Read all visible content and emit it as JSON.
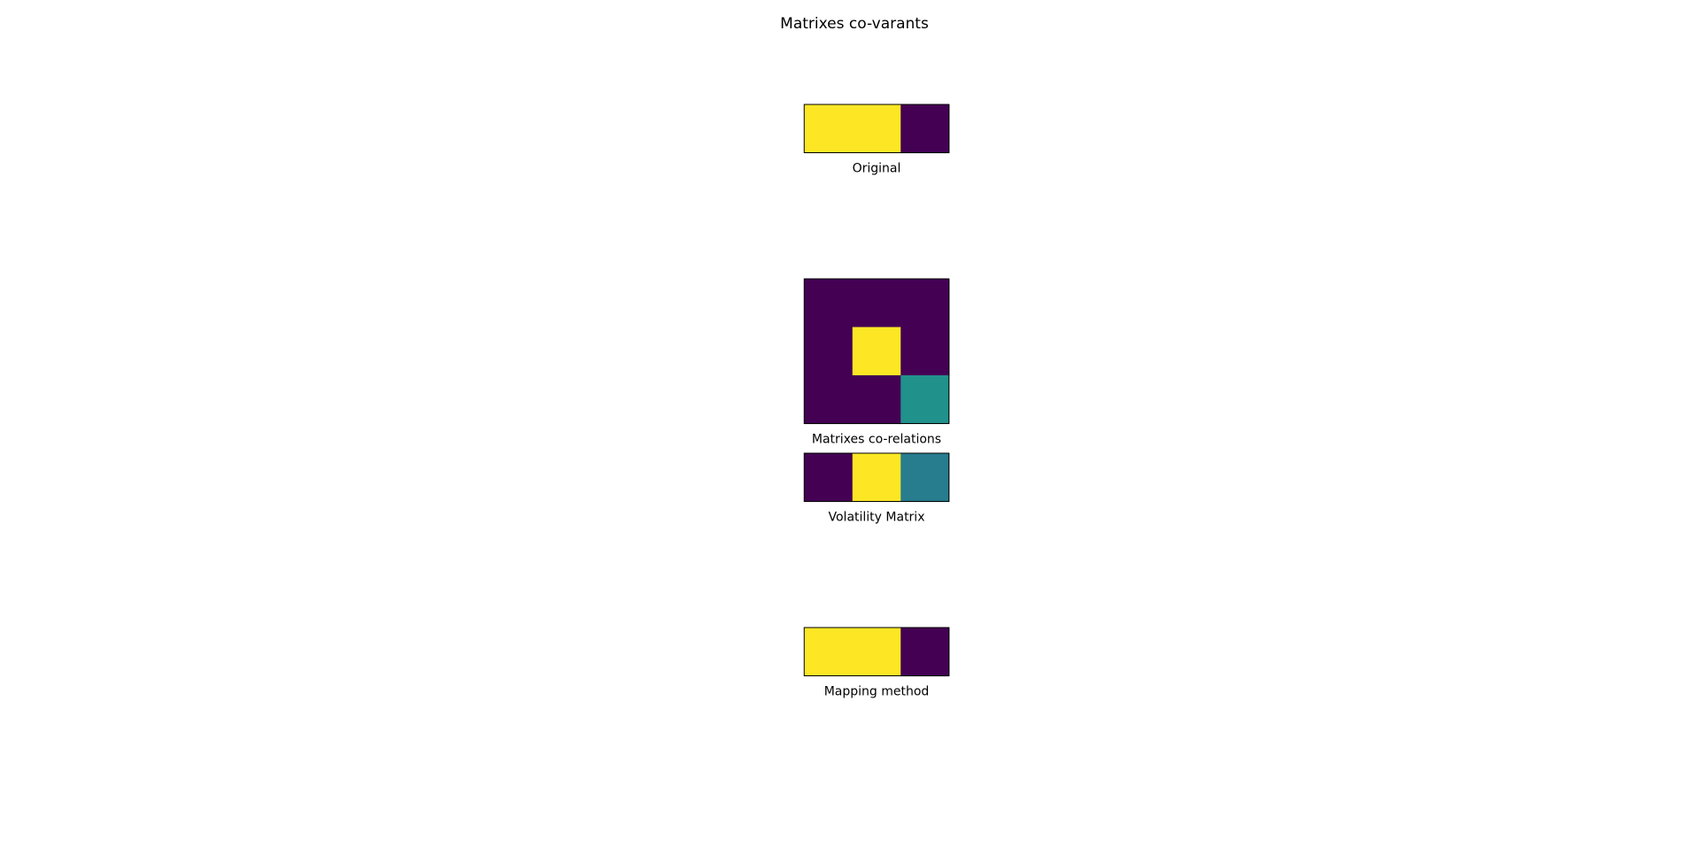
{
  "title": "Matrixes co-varants",
  "colormap": {
    "name": "viridis",
    "low": "#440154",
    "high": "#fde725"
  },
  "chart_data": [
    {
      "type": "heatmap",
      "caption": "Original",
      "rows": 1,
      "cols": 3,
      "vmin": 0,
      "vmax": 1,
      "values": [
        [
          1,
          1,
          0
        ]
      ],
      "colors": [
        [
          "#fde725",
          "#fde725",
          "#440154"
        ]
      ],
      "axes_visible": false
    },
    {
      "type": "heatmap",
      "caption": "Matrixes co-relations",
      "rows": 3,
      "cols": 3,
      "vmin": 0,
      "vmax": 1,
      "values": [
        [
          0,
          0,
          0
        ],
        [
          0,
          1,
          0
        ],
        [
          0,
          0,
          0.5
        ]
      ],
      "colors": [
        [
          "#440154",
          "#440154",
          "#440154"
        ],
        [
          "#440154",
          "#fde725",
          "#440154"
        ],
        [
          "#440154",
          "#440154",
          "#21918c"
        ]
      ],
      "axes_visible": false
    },
    {
      "type": "heatmap",
      "caption": "Volatility Matrix",
      "rows": 1,
      "cols": 3,
      "vmin": 0,
      "vmax": 1,
      "values": [
        [
          0,
          1,
          0.4
        ]
      ],
      "colors": [
        [
          "#440154",
          "#fde725",
          "#277c8e"
        ]
      ],
      "axes_visible": false
    },
    {
      "type": "heatmap",
      "caption": "Mapping method",
      "rows": 1,
      "cols": 3,
      "vmin": 0,
      "vmax": 1,
      "values": [
        [
          1,
          1,
          0
        ]
      ],
      "colors": [
        [
          "#fde725",
          "#fde725",
          "#440154"
        ]
      ],
      "axes_visible": false
    }
  ]
}
